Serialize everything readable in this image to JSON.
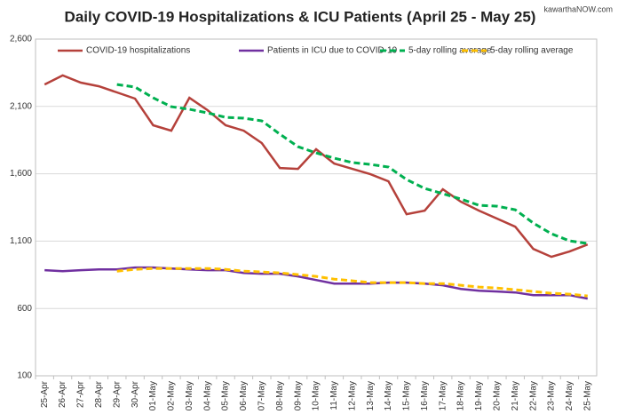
{
  "chart_data": {
    "type": "line",
    "title": "Daily COVID-19 Hospitalizations & ICU Patients (April 25 - May 25)",
    "source": "kawarthaNOW.com",
    "categories": [
      "25-Apr",
      "26-Apr",
      "27-Apr",
      "28-Apr",
      "29-Apr",
      "30-Apr",
      "01-May",
      "02-May",
      "03-May",
      "04-May",
      "05-May",
      "06-May",
      "07-May",
      "08-May",
      "09-May",
      "10-May",
      "11-May",
      "12-May",
      "13-May",
      "14-May",
      "15-May",
      "16-May",
      "17-May",
      "18-May",
      "19-May",
      "20-May",
      "21-May",
      "22-May",
      "23-May",
      "24-May",
      "25-May"
    ],
    "series": [
      {
        "name": "COVID-19 hospitalizations",
        "color": "#b5413b",
        "dashed": false,
        "values": [
          2263,
          2330,
          2277,
          2250,
          2204,
          2158,
          1960,
          1920,
          2164,
          2072,
          1960,
          1920,
          1828,
          1643,
          1636,
          1782,
          1676,
          1636,
          1597,
          1544,
          1300,
          1326,
          1485,
          1392,
          1326,
          1267,
          1207,
          1042,
          983,
          1023,
          1075
        ]
      },
      {
        "name": "Patients in ICU due to COVID-19",
        "color": "#7030a0",
        "dashed": false,
        "values": [
          884,
          877,
          884,
          890,
          890,
          904,
          904,
          897,
          890,
          884,
          884,
          864,
          858,
          858,
          838,
          811,
          785,
          785,
          785,
          792,
          792,
          785,
          772,
          745,
          732,
          726,
          719,
          699,
          699,
          699,
          673
        ]
      },
      {
        "name": "5-day rolling average",
        "color": "#00b050",
        "dashed": true,
        "values": [
          null,
          null,
          null,
          null,
          2263,
          2244,
          2164,
          2098,
          2079,
          2052,
          2019,
          2013,
          1993,
          1894,
          1801,
          1755,
          1716,
          1683,
          1669,
          1650,
          1557,
          1491,
          1452,
          1412,
          1366,
          1359,
          1333,
          1234,
          1155,
          1102,
          1082
        ]
      },
      {
        "name": "5-day rolling average",
        "color": "#ffc000",
        "dashed": true,
        "values": [
          null,
          null,
          null,
          null,
          877,
          890,
          897,
          897,
          897,
          897,
          890,
          877,
          871,
          864,
          851,
          838,
          818,
          805,
          792,
          792,
          792,
          785,
          785,
          772,
          759,
          752,
          739,
          726,
          713,
          706,
          693
        ]
      }
    ],
    "ylim": [
      100,
      2600
    ],
    "yticks": [
      100,
      600,
      {
        "value": 1100,
        "label": "1,100"
      },
      {
        "value": 1600,
        "label": "1,600"
      },
      {
        "value": 2100,
        "label": "2,100"
      },
      {
        "value": 2600,
        "label": "2,600"
      }
    ],
    "grid": true,
    "legend": "top"
  }
}
